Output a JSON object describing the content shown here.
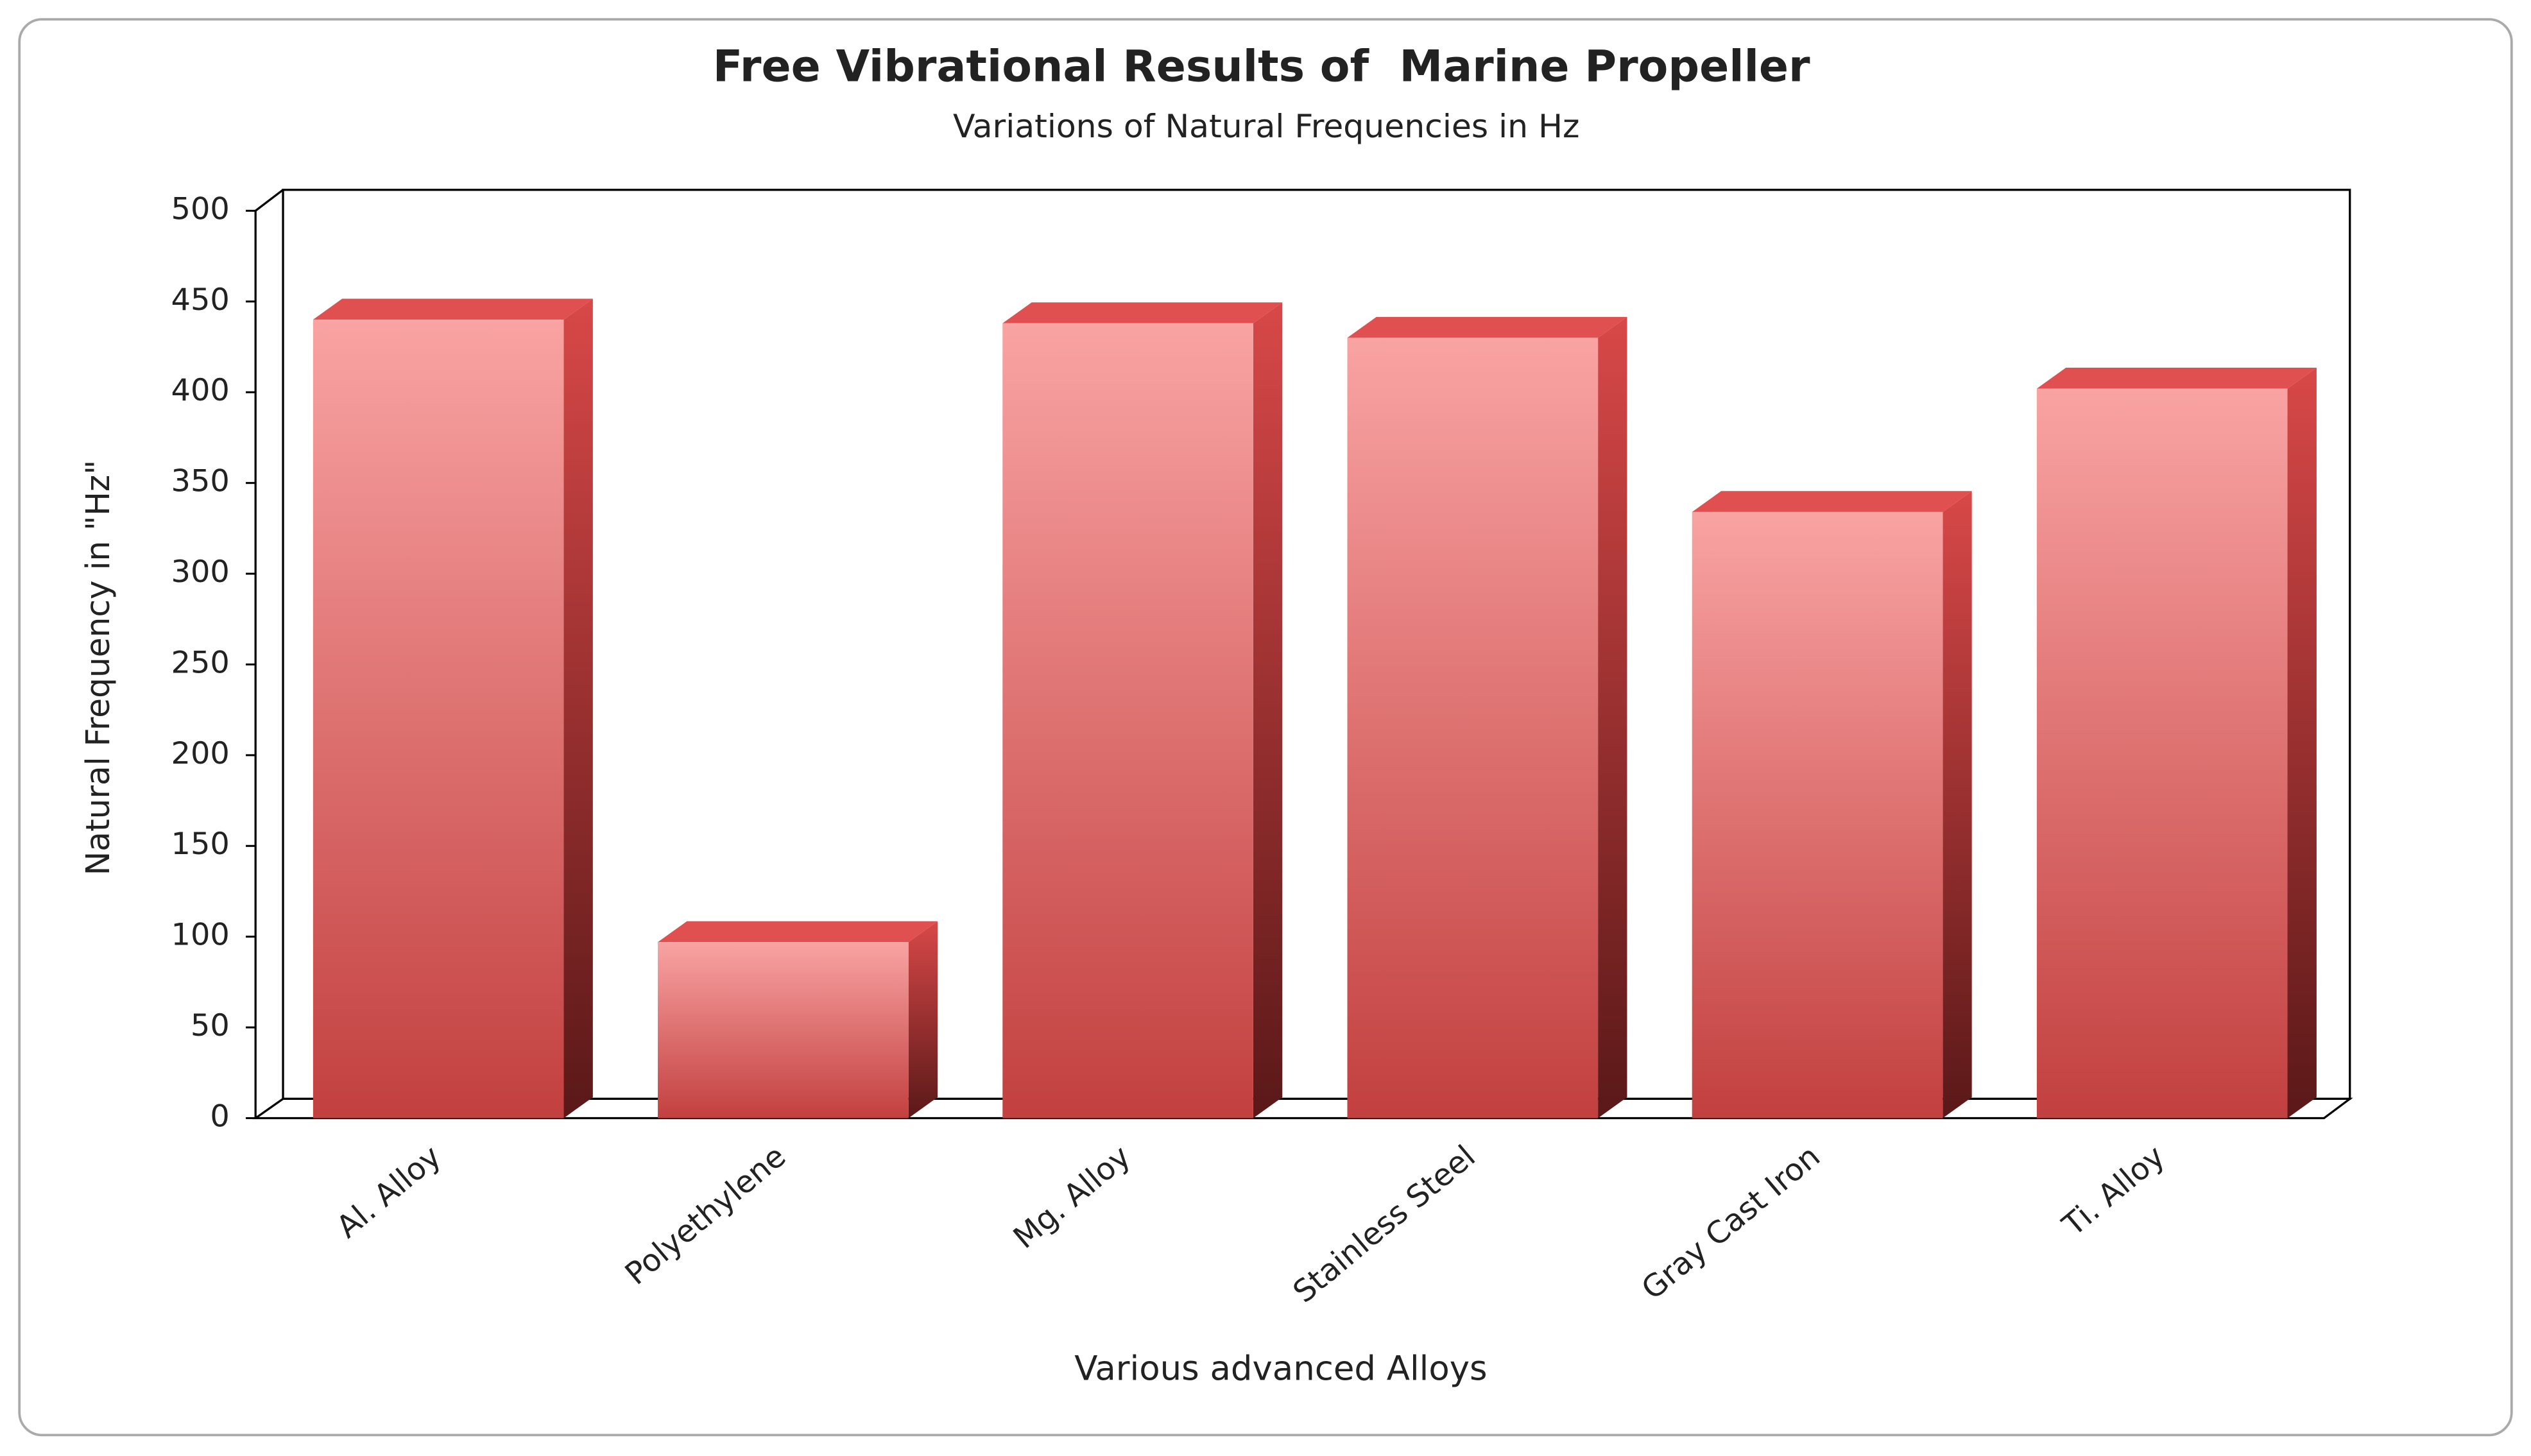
{
  "chart_data": {
    "type": "bar3d",
    "title": "Free Vibrational Results of  Marine Propeller",
    "subtitle": "Variations of Natural Frequencies in Hz",
    "x_label": "Various advanced Alloys",
    "y_label": "Natural Frequency in \"Hz\"",
    "categories": [
      "Al. Alloy",
      "Polyethylene",
      "Mg. Alloy",
      "Stainless Steel",
      "Gray Cast Iron",
      "Ti. Alloy"
    ],
    "values": [
      440,
      97,
      438,
      430,
      334,
      402
    ],
    "color": "#e05050",
    "ylim": [
      0,
      500
    ],
    "yticks": [
      0,
      50,
      100,
      150,
      200,
      250,
      300,
      350,
      400,
      450,
      500
    ],
    "grid": false
  }
}
